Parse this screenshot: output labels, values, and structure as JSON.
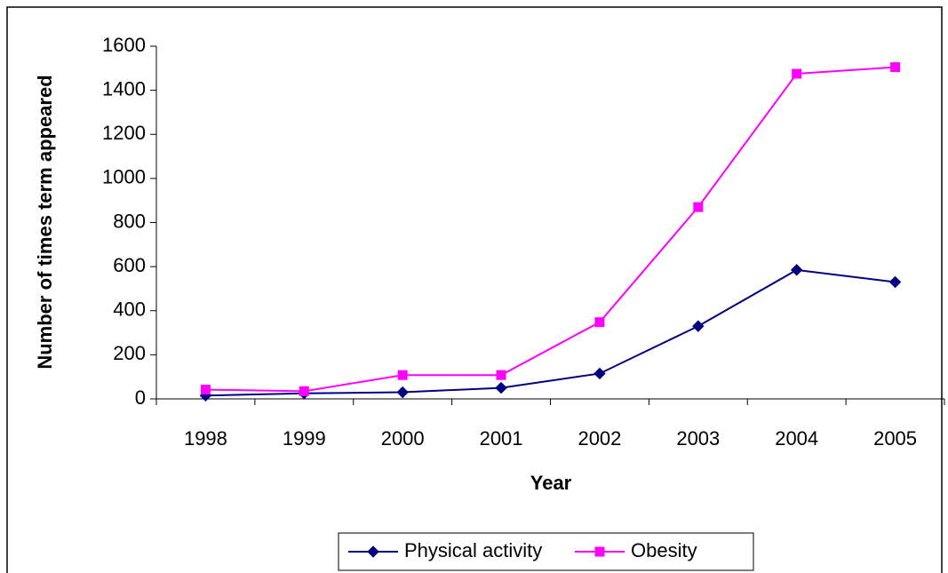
{
  "chart_data": {
    "type": "line",
    "x_label": "Year",
    "y_label": "Number of times term appeared",
    "categories": [
      "1998",
      "1999",
      "2000",
      "2001",
      "2002",
      "2003",
      "2004",
      "2005"
    ],
    "series": [
      {
        "name": "Physical activity",
        "color": "#000080",
        "marker": "diamond",
        "values": [
          15,
          25,
          30,
          50,
          115,
          330,
          585,
          530
        ]
      },
      {
        "name": "Obesity",
        "color": "#ff00ff",
        "marker": "square",
        "values": [
          42,
          35,
          108,
          108,
          348,
          870,
          1475,
          1505
        ]
      }
    ],
    "ylim": [
      0,
      1600
    ],
    "yticks": [
      0,
      200,
      400,
      600,
      800,
      1000,
      1200,
      1400,
      1600
    ],
    "grid": false,
    "legend": "bottom"
  }
}
